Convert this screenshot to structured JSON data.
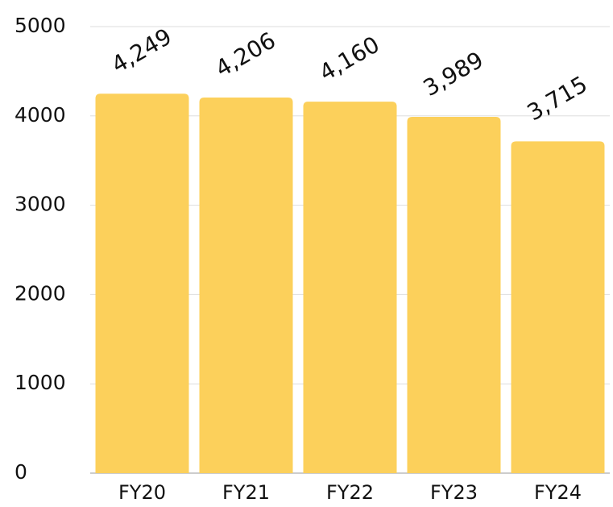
{
  "chart_data": {
    "type": "bar",
    "categories": [
      "FY20",
      "FY21",
      "FY22",
      "FY23",
      "FY24"
    ],
    "values": [
      4249,
      4206,
      4160,
      3989,
      3715
    ],
    "value_labels": [
      "4,249",
      "4,206",
      "4,160",
      "3,989",
      "3,715"
    ],
    "color": "#fcd05b",
    "ylim": [
      0,
      5000
    ],
    "yticks": [
      0,
      1000,
      2000,
      3000,
      4000,
      5000
    ],
    "grid": true
  }
}
